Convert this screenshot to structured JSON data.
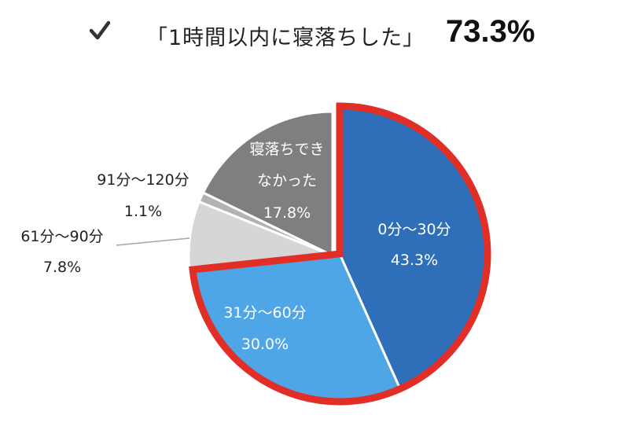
{
  "headline": {
    "check_icon": "checkmark-icon",
    "text": "「1時間以内に寝落ちした」",
    "value": "73.3%"
  },
  "colors": {
    "highlight_border": "#e12f27",
    "slice_0_30": "#2f6fb9",
    "slice_31_60": "#4fa6e6",
    "slice_61_90": "#d6d6d6",
    "slice_91_120": "#b2b2b2",
    "slice_never": "#7f7f7f"
  },
  "chart_data": {
    "type": "pie",
    "title": "",
    "slices": [
      {
        "label": "0分〜30分",
        "value": 43.3,
        "value_label": "43.3%"
      },
      {
        "label": "31分〜60分",
        "value": 30.0,
        "value_label": "30.0%"
      },
      {
        "label": "61分〜90分",
        "value": 7.8,
        "value_label": "7.8%"
      },
      {
        "label": "91分〜120分",
        "value": 1.1,
        "value_label": "1.1%"
      },
      {
        "label": [
          "寝落ちでき",
          "なかった"
        ],
        "value": 17.8,
        "value_label": "17.8%"
      }
    ],
    "highlighted": [
      "0分〜30分",
      "31分〜60分"
    ],
    "highlighted_total": 73.3,
    "start": "12 o'clock",
    "direction": "clockwise"
  }
}
